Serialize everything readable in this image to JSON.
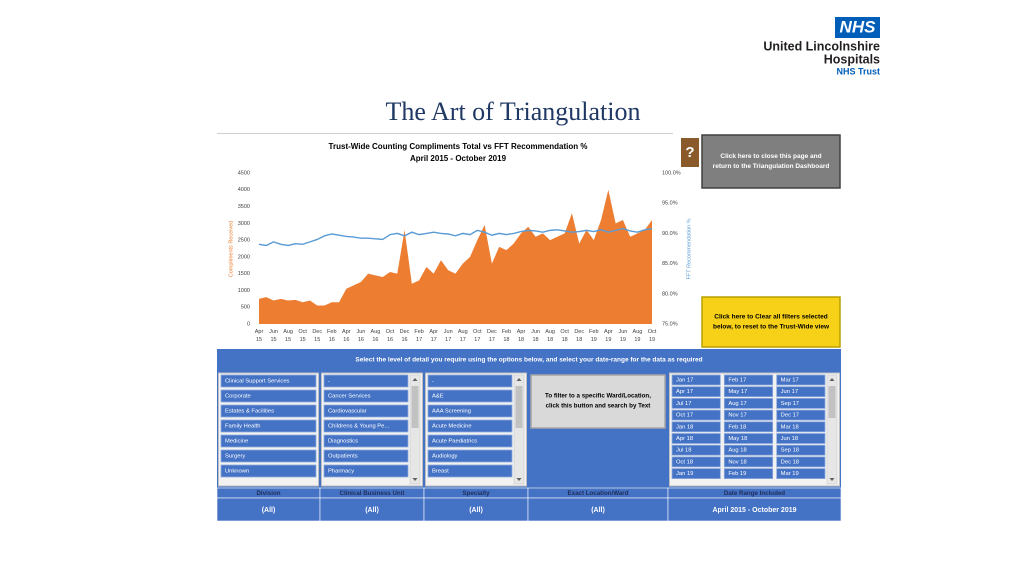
{
  "header": {
    "logo_badge": "NHS",
    "org_lines": [
      "United Lincolnshire",
      "Hospitals"
    ],
    "org_sub": "NHS Trust"
  },
  "title": "The Art of Triangulation",
  "chart_data": {
    "type": "combo",
    "title": "Trust-Wide Counting Compliments Total vs FFT Recommendation %",
    "subtitle": "April 2015 - October 2019",
    "y_label": "Compliments Received",
    "y2_label": "FFT Recommendation %",
    "categories": [
      "Apr 15",
      null,
      "Jun 15",
      null,
      "Aug 15",
      null,
      "Oct 15",
      null,
      "Dec 15",
      null,
      "Feb 16",
      null,
      "Apr 16",
      null,
      "Jun 16",
      null,
      "Aug 16",
      null,
      "Oct 16",
      null,
      "Dec 16",
      null,
      "Feb 17",
      null,
      "Apr 17",
      null,
      "Jun 17",
      null,
      "Aug 17",
      null,
      "Oct 17",
      null,
      "Dec 17",
      null,
      "Feb 18",
      null,
      "Apr 18",
      null,
      "Jun 18",
      null,
      "Aug 18",
      null,
      "Oct 18",
      null,
      "Dec 18",
      null,
      "Feb 19",
      null,
      "Apr 19",
      null,
      "Jun 19",
      null,
      "Aug 19",
      null,
      "Oct 19"
    ],
    "series": [
      {
        "name": "Compliments Received",
        "type": "area",
        "color": "#ed7d31",
        "values": [
          750,
          800,
          700,
          750,
          700,
          720,
          650,
          700,
          550,
          550,
          650,
          650,
          1050,
          1150,
          1250,
          1500,
          1450,
          1400,
          1550,
          1500,
          2800,
          1200,
          1300,
          1700,
          1500,
          1900,
          1600,
          1500,
          1800,
          2000,
          2500,
          2950,
          1800,
          2300,
          2200,
          2400,
          2700,
          2900,
          2600,
          2700,
          2500,
          2600,
          2700,
          3300,
          2400,
          2800,
          2500,
          3100,
          4000,
          3000,
          3100,
          2600,
          2700,
          2800,
          3100
        ]
      },
      {
        "name": "FFT Recommendation %",
        "type": "line",
        "color": "#5b9bd5",
        "axis": "y2",
        "values": [
          88.2,
          88.0,
          88.6,
          88.2,
          88.0,
          88.3,
          88.2,
          88.6,
          89.0,
          89.6,
          89.9,
          89.7,
          89.5,
          89.4,
          89.2,
          89.2,
          89.1,
          89.0,
          89.8,
          90.0,
          89.6,
          90.2,
          89.8,
          90.0,
          90.2,
          90.0,
          89.9,
          89.6,
          90.0,
          89.8,
          90.5,
          90.2,
          89.7,
          90.0,
          89.8,
          90.0,
          90.3,
          90.5,
          90.4,
          90.2,
          90.5,
          90.6,
          90.4,
          90.2,
          90.3,
          90.5,
          90.3,
          90.6,
          90.2,
          90.5,
          90.8,
          90.4,
          90.2,
          90.6,
          90.8
        ]
      }
    ],
    "ylim": [
      0,
      4500
    ],
    "yticks": [
      0,
      500,
      1000,
      1500,
      2000,
      2500,
      3000,
      3500,
      4000,
      4500
    ],
    "y2lim": [
      75,
      100
    ],
    "y2ticks": [
      {
        "value": 75,
        "label": "75.0%"
      },
      {
        "value": 80,
        "label": "80.0%"
      },
      {
        "value": 85,
        "label": "85.0%"
      },
      {
        "value": 90,
        "label": "90.0%"
      },
      {
        "value": 95,
        "label": "95.0%"
      },
      {
        "value": 100,
        "label": "100.0%"
      }
    ],
    "grid": false
  },
  "buttons": {
    "help": "?",
    "close": [
      "Click here to close this page and",
      "return to the Triangulation Dashboard"
    ],
    "clear": [
      "Click here to Clear all filters selected",
      "below, to reset to the Trust-Wide view"
    ]
  },
  "banner": "Select the level of detail you require using the options below, and select your date-range for the data as required",
  "slicers": [
    {
      "header": "Division",
      "items": [
        "Clinical Support Services",
        "Corporate",
        "Estates & Facilities",
        "Family Health",
        "Medicine",
        "Surgery",
        "Unknown"
      ],
      "selection": "(All)"
    },
    {
      "header": "Clinical Business Unit",
      "items": [
        "-",
        "Cancer Services",
        "Cardiovascular",
        "Childrens & Young Pe...",
        "Diagnostics",
        "Outpatients",
        "Pharmacy"
      ],
      "selection": "(All)"
    },
    {
      "header": "Specialty",
      "items": [
        "-",
        "A&E",
        "AAA Screening",
        "Acute Medicine",
        "Acute Paediatrics",
        "Audiology",
        "Breast"
      ],
      "selection": "(All)"
    },
    {
      "header": "Exact Location/Ward",
      "button": [
        "To filter to a specific Ward/Location,",
        "click this button and search by Text"
      ],
      "selection": "(All)"
    },
    {
      "header": "Date Range Included",
      "items": [
        "Jan 17",
        "Feb 17",
        "Mar 17",
        "Apr 17",
        "May 17",
        "Jun 17",
        "Jul 17",
        "Aug 17",
        "Sep 17",
        "Oct 17",
        "Nov 17",
        "Dec 17",
        "Jan 18",
        "Feb 18",
        "Mar 18",
        "Apr 18",
        "May 18",
        "Jun 18",
        "Jul 18",
        "Aug 18",
        "Sep 18",
        "Oct 18",
        "Nov 18",
        "Dec 18",
        "Jan 19",
        "Feb 19",
        "Mar 19"
      ],
      "selection": "April 2015 - October 2019"
    }
  ]
}
